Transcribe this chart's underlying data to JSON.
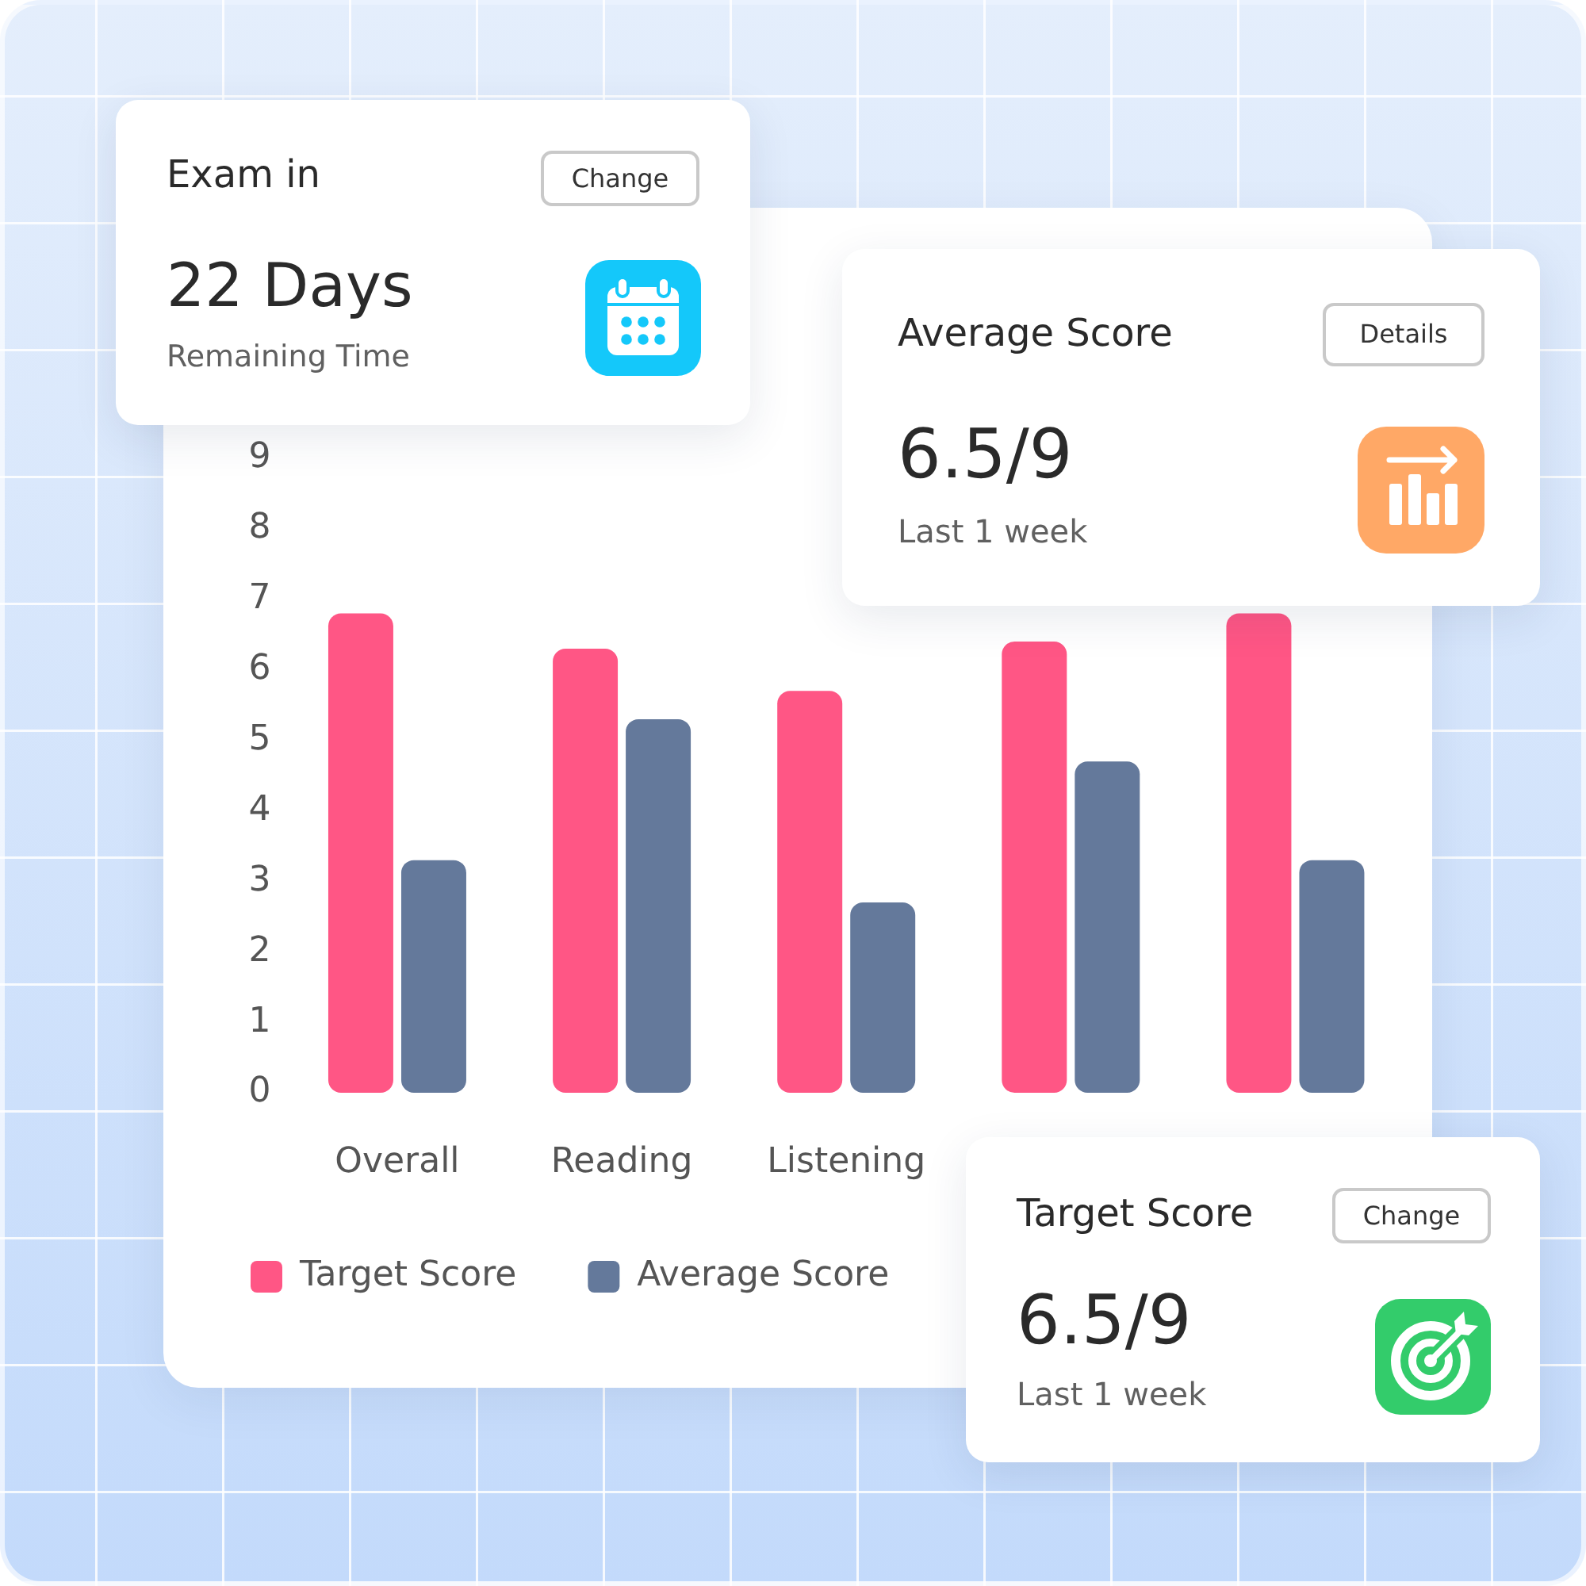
{
  "chart_data": [
    {
      "type": "other",
      "title": "Exam in",
      "annotations": [
        "Change",
        "22 Days",
        "Remaining Time"
      ]
    },
    {
      "type": "bar",
      "categories": [
        "Overall",
        "Reading",
        "Listening",
        null,
        null
      ],
      "series": [
        {
          "name": "Target Score",
          "color": "#ff5685",
          "values": [
            6.8,
            6.3,
            5.7,
            6.4,
            6.8
          ]
        },
        {
          "name": "Average Score",
          "color": "#64799b",
          "values": [
            3.3,
            5.3,
            2.7,
            4.7,
            3.3
          ]
        }
      ],
      "ylim": [
        0,
        9
      ],
      "yticks": [
        0,
        1,
        2,
        3,
        4,
        5,
        6,
        7,
        8,
        9
      ],
      "grid": false,
      "legend": "bottom left"
    },
    {
      "type": "other",
      "title": "Average Score",
      "annotations": [
        "Details",
        "6.5/9",
        "Last 1 week"
      ]
    },
    {
      "type": "other",
      "title": "Target Score",
      "annotations": [
        "Change",
        "6.5/9",
        "Last 1 week"
      ]
    }
  ]
}
